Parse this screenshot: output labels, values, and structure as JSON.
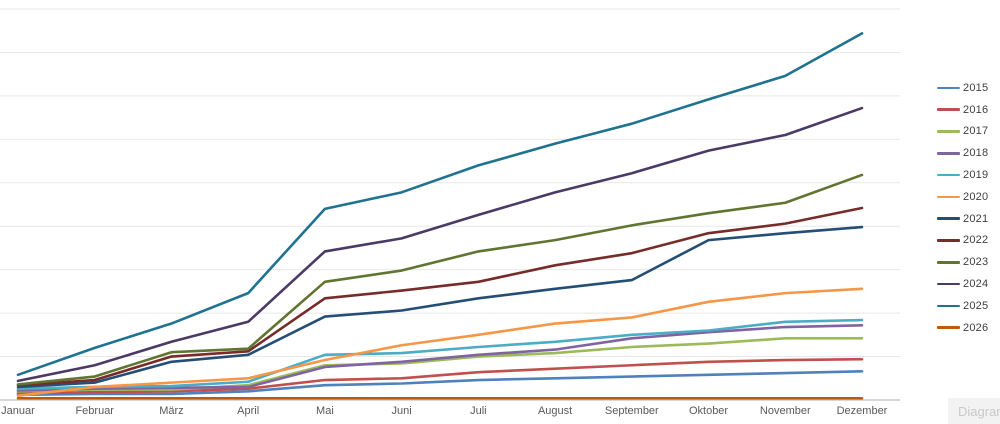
{
  "chart_data": {
    "type": "line",
    "title": "",
    "xlabel": "",
    "ylabel": "",
    "categories": [
      "Januar",
      "Februar",
      "März",
      "April",
      "Mai",
      "Juni",
      "Juli",
      "August",
      "September",
      "Oktober",
      "November",
      "Dezember"
    ],
    "series": [
      {
        "name": "2015",
        "color": "#4F81BD",
        "values": [
          6,
          7,
          7,
          10,
          17,
          19,
          23,
          25,
          27,
          29,
          31,
          33
        ]
      },
      {
        "name": "2016",
        "color": "#C0504D",
        "values": [
          8,
          9,
          10,
          13,
          23,
          25,
          32,
          36,
          40,
          44,
          46,
          47
        ]
      },
      {
        "name": "2017",
        "color": "#9BBB59",
        "values": [
          10,
          12,
          12,
          17,
          40,
          42,
          50,
          54,
          61,
          65,
          71,
          71
        ]
      },
      {
        "name": "2018",
        "color": "#8064A2",
        "values": [
          11,
          13,
          14,
          15,
          38,
          44,
          52,
          58,
          71,
          78,
          84,
          86
        ]
      },
      {
        "name": "2019",
        "color": "#4BACC6",
        "values": [
          13,
          15,
          16,
          21,
          52,
          54,
          61,
          67,
          75,
          80,
          90,
          92
        ]
      },
      {
        "name": "2020",
        "color": "#F79646",
        "values": [
          5,
          15,
          20,
          25,
          46,
          63,
          75,
          88,
          95,
          113,
          123,
          128
        ]
      },
      {
        "name": "2021",
        "color": "#254E77",
        "values": [
          15,
          20,
          44,
          52,
          96,
          103,
          117,
          128,
          138,
          184,
          192,
          199
        ]
      },
      {
        "name": "2022",
        "color": "#772C2A",
        "values": [
          17,
          23,
          50,
          56,
          117,
          126,
          136,
          155,
          169,
          192,
          203,
          221
        ]
      },
      {
        "name": "2023",
        "color": "#5F7530",
        "values": [
          18,
          27,
          55,
          59,
          136,
          149,
          171,
          184,
          201,
          215,
          227,
          259
        ]
      },
      {
        "name": "2024",
        "color": "#4B3A66",
        "values": [
          22,
          40,
          67,
          90,
          171,
          186,
          213,
          239,
          261,
          287,
          305,
          336
        ]
      },
      {
        "name": "2025",
        "color": "#1F7391",
        "values": [
          29,
          60,
          88,
          123,
          220,
          239,
          270,
          295,
          318,
          346,
          373,
          422
        ]
      },
      {
        "name": "2026",
        "color": "#BE5A0E",
        "values": [
          2,
          2,
          2,
          2,
          2,
          2,
          2,
          2,
          2,
          2,
          2,
          2
        ]
      }
    ],
    "ylim": [
      0,
      450
    ],
    "gridline_step": 50,
    "grid": true,
    "y_axis_labels_visible": false,
    "legend_position": "right",
    "colors": {
      "gridline": "#E8E8E8",
      "axis_line": "#BFBFBF",
      "tick_label": "#595959",
      "legend_text": "#3F3F3F"
    }
  },
  "footer": {
    "widget_label": "Diagramm"
  }
}
